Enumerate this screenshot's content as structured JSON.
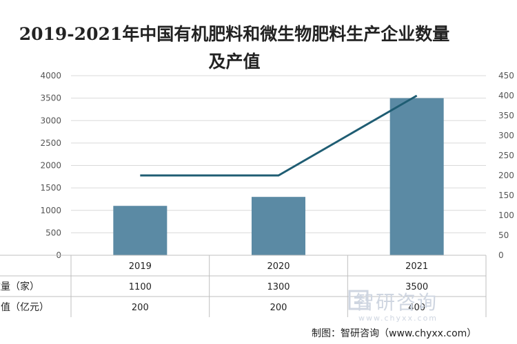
{
  "chart_data": {
    "type": "bar",
    "title": "2019-2021年中国有机肥料和微生物肥料生产企业数量及产值",
    "title_line1": "2019-2021年中国有机肥料和微生物肥料生产企业数量",
    "title_line2": "及产值",
    "categories": [
      "2019",
      "2020",
      "2021"
    ],
    "series": [
      {
        "name": "数量（家）",
        "type": "bar",
        "axis": "left",
        "values": [
          1100,
          1300,
          3500
        ],
        "color": "#5b8aa4"
      },
      {
        "name": "产值（亿元）",
        "type": "line",
        "axis": "right",
        "values": [
          200,
          200,
          400
        ],
        "color": "#1f5d73"
      }
    ],
    "y_left": {
      "min": 0,
      "max": 4000,
      "ticks": [
        0,
        500,
        1000,
        1500,
        2000,
        2500,
        3000,
        3500,
        4000
      ]
    },
    "y_right": {
      "min": 0,
      "max": 450,
      "ticks": [
        0,
        50,
        100,
        150,
        200,
        250,
        300,
        350,
        400,
        450
      ]
    },
    "grid": true,
    "data_table": {
      "row_labels": [
        "数量（家）",
        "产值（亿元）"
      ],
      "rows": [
        [
          "1100",
          "1300",
          "3500"
        ],
        [
          "200",
          "200",
          "400"
        ]
      ]
    }
  },
  "watermark": {
    "text": "智研咨询",
    "url": "www.chyxx.com"
  },
  "source": "制图：智研咨询（www.chyxx.com）"
}
